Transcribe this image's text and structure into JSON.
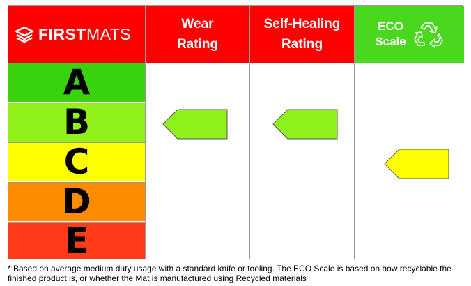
{
  "brand": {
    "first": "FIRST",
    "mats": "MATS",
    "logo_icon": "stacked-layers-icon"
  },
  "columns": {
    "wear": {
      "line1": "Wear",
      "line2": "Rating"
    },
    "self_healing": {
      "line1": "Self-Healing",
      "line2": "Rating"
    },
    "eco": {
      "line1": "ECO",
      "line2": "Scale",
      "icon": "recycle-icon"
    }
  },
  "grades": [
    {
      "letter": "A",
      "color": "#39d30e"
    },
    {
      "letter": "B",
      "color": "#8ef21a"
    },
    {
      "letter": "C",
      "color": "#ffff00"
    },
    {
      "letter": "D",
      "color": "#ff8c00"
    },
    {
      "letter": "E",
      "color": "#ff3b1a"
    }
  ],
  "ratings": {
    "wear": "B",
    "self_healing": "B",
    "eco": "C"
  },
  "colors": {
    "header_red": "#ff0000",
    "header_green": "#49d81d",
    "border": "#9a9a9a"
  },
  "footnote": "* Based on average medium duty usage with a standard knife or tooling. The ECO Scale is based on how recyclable the finished product is, or whether the Mat is manufactured using Recycled materials"
}
